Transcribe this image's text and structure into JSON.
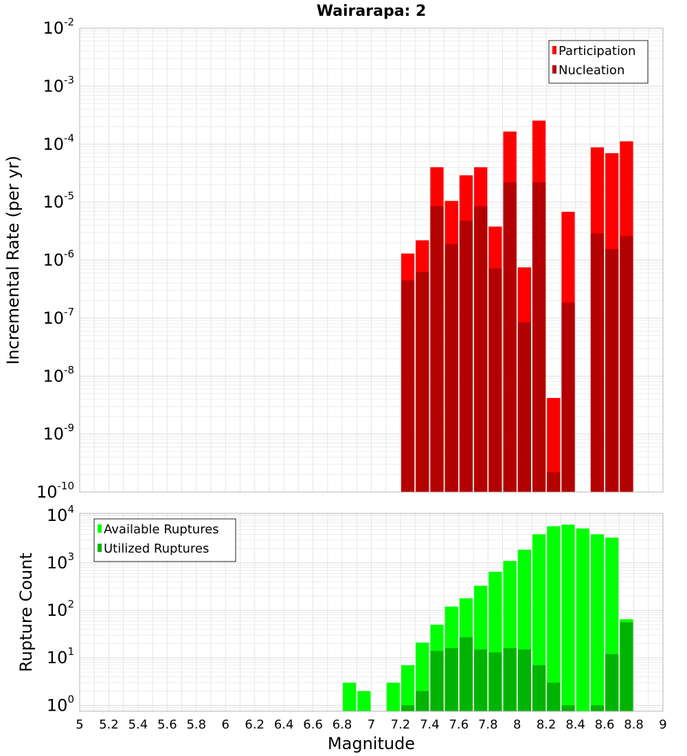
{
  "chart_data": [
    {
      "type": "bar",
      "title": "Wairarapa: 2",
      "xlabel": "",
      "ylabel": "Incremental Rate (per yr)",
      "yscale": "log",
      "ylim": [
        1e-10,
        0.01
      ],
      "xlim": [
        5,
        9
      ],
      "bar_width": 0.1,
      "y_decades": [
        -10,
        -9,
        -8,
        -7,
        -6,
        -5,
        -4,
        -3,
        -2
      ],
      "legend_position": "top-right",
      "series": [
        {
          "name": "Participation",
          "color": "#ff0000",
          "x": [
            7.25,
            7.35,
            7.45,
            7.55,
            7.65,
            7.75,
            7.85,
            7.95,
            8.05,
            8.15,
            8.25,
            8.35,
            8.55,
            8.65,
            8.75
          ],
          "values": [
            1.3e-06,
            2.2e-06,
            4e-05,
            1.05e-05,
            2.9e-05,
            4e-05,
            3.8e-06,
            0.000165,
            7.5e-07,
            0.000255,
            4.2e-09,
            6.8e-06,
            8.8e-05,
            7e-05,
            0.000112
          ]
        },
        {
          "name": "Nucleation",
          "color": "#b30000",
          "x": [
            7.25,
            7.35,
            7.45,
            7.55,
            7.65,
            7.75,
            7.85,
            7.95,
            8.05,
            8.15,
            8.25,
            8.35,
            8.55,
            8.65,
            8.75
          ],
          "values": [
            4.5e-07,
            6.2e-07,
            8.5e-06,
            1.9e-06,
            4.8e-06,
            8.5e-06,
            7.2e-07,
            2.2e-05,
            8.5e-08,
            2.2e-05,
            2.2e-10,
            1.85e-07,
            2.9e-06,
            1.55e-06,
            2.6e-06
          ]
        }
      ]
    },
    {
      "type": "bar",
      "title": "",
      "xlabel": "Magnitude",
      "ylabel": "Rupture Count",
      "yscale": "log",
      "ylim": [
        0.75,
        11000
      ],
      "xlim": [
        5,
        9
      ],
      "bar_width": 0.1,
      "y_decades": [
        0,
        1,
        2,
        3,
        4
      ],
      "legend_position": "top-left",
      "x_ticks": [
        "5",
        "5.2",
        "5.4",
        "5.6",
        "5.8",
        "6",
        "6.2",
        "6.4",
        "6.6",
        "6.8",
        "7",
        "7.2",
        "7.4",
        "7.6",
        "7.8",
        "8",
        "8.2",
        "8.4",
        "8.6",
        "8.8",
        "9"
      ],
      "series": [
        {
          "name": "Available Ruptures",
          "color": "#00ff00",
          "x": [
            6.85,
            6.95,
            7.15,
            7.25,
            7.35,
            7.45,
            7.55,
            7.65,
            7.75,
            7.85,
            7.95,
            8.05,
            8.15,
            8.25,
            8.35,
            8.45,
            8.55,
            8.65,
            8.75
          ],
          "values": [
            3,
            2,
            3,
            7,
            21,
            50,
            120,
            180,
            330,
            650,
            1100,
            1900,
            4000,
            5900,
            6400,
            5300,
            4000,
            3400,
            65
          ]
        },
        {
          "name": "Utilized Ruptures",
          "color": "#00b300",
          "x": [
            7.25,
            7.35,
            7.45,
            7.55,
            7.65,
            7.75,
            7.85,
            7.95,
            8.05,
            8.15,
            8.25,
            8.35,
            8.55,
            8.65,
            8.75
          ],
          "values": [
            1,
            2,
            14,
            16,
            27,
            15,
            13,
            16,
            15,
            7,
            3,
            1,
            1,
            12,
            56
          ]
        }
      ]
    }
  ]
}
